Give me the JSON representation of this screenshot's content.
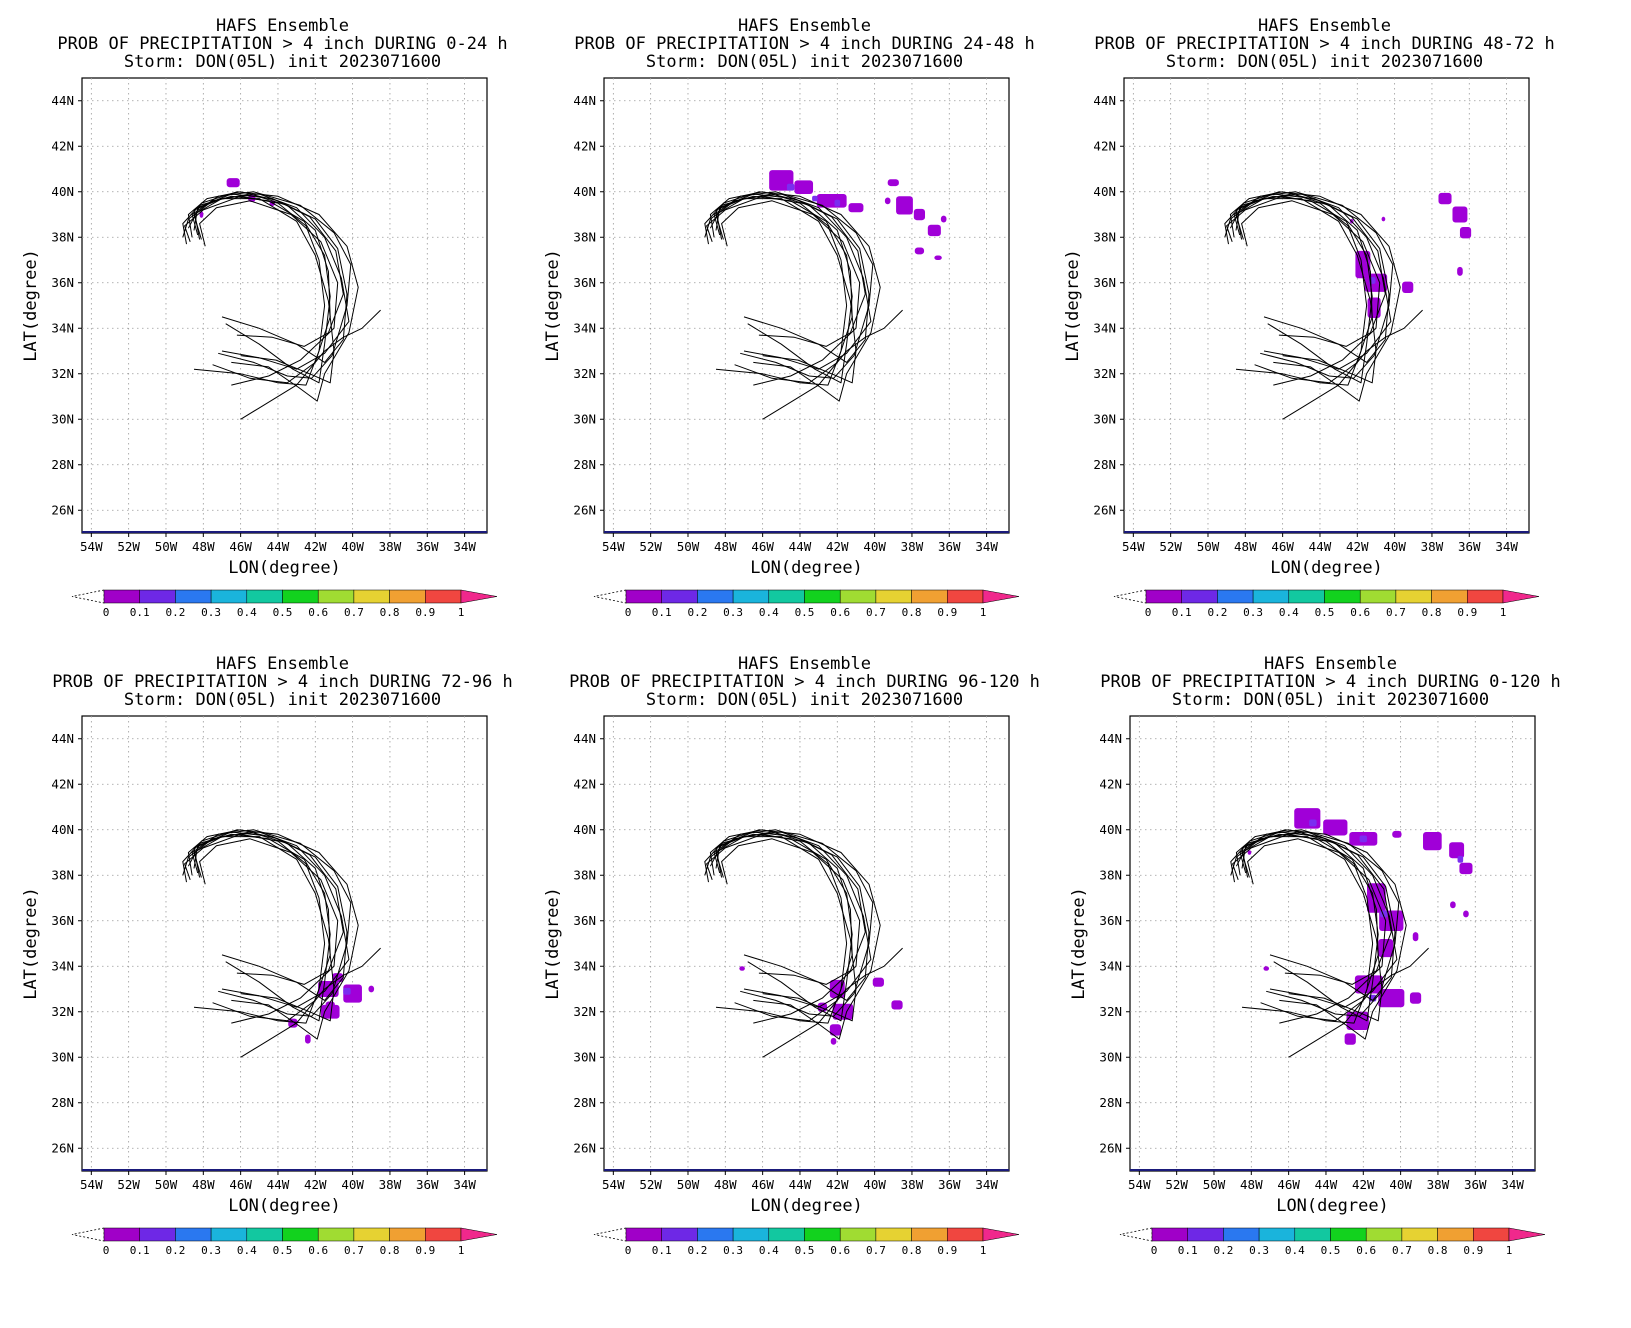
{
  "colors": {
    "ticks": [
      "0",
      "0.1",
      "0.2",
      "0.3",
      "0.4",
      "0.5",
      "0.6",
      "0.7",
      "0.8",
      "0.9",
      "1"
    ],
    "scale": [
      "#a000c8",
      "#6e28e6",
      "#2a78f0",
      "#1ab4dc",
      "#12c8a0",
      "#12d21e",
      "#a0dc32",
      "#e6d232",
      "#f0a032",
      "#f04640"
    ],
    "over": "#f0288c",
    "blob": "#a000d8",
    "blob_hi": "#7a2ef0"
  },
  "panels": [
    {
      "title1": "HAFS Ensemble",
      "title2": "PROB OF PRECIPITATION > 4 inch DURING  0-24 h",
      "title3": "Storm: DON(05L) init 2023071600",
      "xlabel": "LON(degree)",
      "ylabel": "LAT(degree)",
      "xticks": [
        "54W",
        "52W",
        "50W",
        "48W",
        "46W",
        "44W",
        "42W",
        "40W",
        "38W",
        "36W",
        "34W"
      ],
      "yticks": [
        "26N",
        "28N",
        "30N",
        "32N",
        "34N",
        "36N",
        "38N",
        "40N",
        "42N",
        "44N"
      ]
    },
    {
      "title1": "HAFS Ensemble",
      "title2": "PROB OF PRECIPITATION > 4 inch DURING 24-48 h",
      "title3": "Storm: DON(05L) init 2023071600",
      "xlabel": "LON(degree)",
      "ylabel": "LAT(degree)",
      "xticks": [
        "54W",
        "52W",
        "50W",
        "48W",
        "46W",
        "44W",
        "42W",
        "40W",
        "38W",
        "36W",
        "34W"
      ],
      "yticks": [
        "26N",
        "28N",
        "30N",
        "32N",
        "34N",
        "36N",
        "38N",
        "40N",
        "42N",
        "44N"
      ]
    },
    {
      "title1": "HAFS Ensemble",
      "title2": "PROB OF PRECIPITATION > 4 inch DURING 48-72 h",
      "title3": "Storm: DON(05L) init 2023071600",
      "xlabel": "LON(degree)",
      "ylabel": "LAT(degree)",
      "xticks": [
        "54W",
        "52W",
        "50W",
        "48W",
        "46W",
        "44W",
        "42W",
        "40W",
        "38W",
        "36W",
        "34W"
      ],
      "yticks": [
        "26N",
        "28N",
        "30N",
        "32N",
        "34N",
        "36N",
        "38N",
        "40N",
        "42N",
        "44N"
      ]
    },
    {
      "title1": "HAFS Ensemble",
      "title2": "PROB OF PRECIPITATION > 4 inch DURING 72-96 h",
      "title3": "Storm: DON(05L) init 2023071600",
      "xlabel": "LON(degree)",
      "ylabel": "LAT(degree)",
      "xticks": [
        "54W",
        "52W",
        "50W",
        "48W",
        "46W",
        "44W",
        "42W",
        "40W",
        "38W",
        "36W",
        "34W"
      ],
      "yticks": [
        "26N",
        "28N",
        "30N",
        "32N",
        "34N",
        "36N",
        "38N",
        "40N",
        "42N",
        "44N"
      ]
    },
    {
      "title1": "HAFS Ensemble",
      "title2": "PROB OF PRECIPITATION > 4 inch DURING 96-120 h",
      "title3": "Storm: DON(05L) init 2023071600",
      "xlabel": "LON(degree)",
      "ylabel": "LAT(degree)",
      "xticks": [
        "54W",
        "52W",
        "50W",
        "48W",
        "46W",
        "44W",
        "42W",
        "40W",
        "38W",
        "36W",
        "34W"
      ],
      "yticks": [
        "26N",
        "28N",
        "30N",
        "32N",
        "34N",
        "36N",
        "38N",
        "40N",
        "42N",
        "44N"
      ]
    },
    {
      "title1": "HAFS Ensemble",
      "title2": "PROB OF PRECIPITATION > 4 inch DURING 0-120 h",
      "title3": "Storm: DON(05L) init 2023071600",
      "xlabel": "LON(degree)",
      "ylabel": "LAT(degree)",
      "xticks": [
        "54W",
        "52W",
        "50W",
        "48W",
        "46W",
        "44W",
        "42W",
        "40W",
        "38W",
        "36W",
        "34W"
      ],
      "yticks": [
        "26N",
        "28N",
        "30N",
        "32N",
        "34N",
        "36N",
        "38N",
        "40N",
        "42N",
        "44N"
      ]
    }
  ],
  "chart_data": {
    "type": "heatmap",
    "map": {
      "lon_range": [
        -54.5,
        -32.8
      ],
      "lat_range": [
        25,
        45
      ],
      "grid": true
    },
    "colorbar": {
      "min": 0,
      "max": 1,
      "step": 0.1,
      "extend": "both"
    },
    "track_lines": [
      [
        [
          -46,
          30
        ],
        [
          -45,
          30.5
        ],
        [
          -43,
          31.5
        ],
        [
          -41.5,
          33
        ],
        [
          -40.5,
          33.6
        ],
        [
          -39.5,
          34
        ],
        [
          -38.5,
          34.8
        ]
      ],
      [
        [
          -48.5,
          32.2
        ],
        [
          -46,
          32
        ],
        [
          -44,
          31.6
        ],
        [
          -42.5,
          31.5
        ],
        [
          -41.8,
          33
        ],
        [
          -41.5,
          35
        ],
        [
          -41.8,
          37
        ],
        [
          -42.5,
          38.5
        ],
        [
          -44,
          39.5
        ],
        [
          -46,
          39.8
        ],
        [
          -48,
          39.2
        ],
        [
          -49,
          38.5
        ],
        [
          -48.7,
          37.8
        ]
      ],
      [
        [
          -47,
          34.5
        ],
        [
          -45,
          34
        ],
        [
          -43,
          33.3
        ],
        [
          -41.5,
          32.5
        ],
        [
          -40.5,
          33.5
        ],
        [
          -40.3,
          35.5
        ],
        [
          -40.8,
          37.5
        ],
        [
          -42,
          38.8
        ],
        [
          -44,
          39.6
        ],
        [
          -46,
          40
        ],
        [
          -47.8,
          39.7
        ],
        [
          -48.8,
          39
        ],
        [
          -48.6,
          38
        ]
      ],
      [
        [
          -47.5,
          32.4
        ],
        [
          -45.5,
          31.8
        ],
        [
          -43.5,
          31.6
        ],
        [
          -42,
          32.5
        ],
        [
          -41.2,
          34.5
        ],
        [
          -41.3,
          36.5
        ],
        [
          -42,
          38.3
        ],
        [
          -43.5,
          39.4
        ],
        [
          -45.5,
          39.9
        ],
        [
          -47.5,
          39.6
        ],
        [
          -48.8,
          38.8
        ],
        [
          -49.1,
          38
        ]
      ],
      [
        [
          -47,
          33
        ],
        [
          -45,
          32.7
        ],
        [
          -43,
          32.2
        ],
        [
          -41.5,
          32.9
        ],
        [
          -40.2,
          34.3
        ],
        [
          -40.6,
          36.2
        ],
        [
          -41.5,
          38
        ],
        [
          -43,
          39.3
        ],
        [
          -45,
          39.9
        ],
        [
          -47,
          39.7
        ],
        [
          -48.5,
          39.2
        ],
        [
          -48.2,
          37.9
        ]
      ],
      [
        [
          -46.5,
          31.5
        ],
        [
          -44.5,
          31.9
        ],
        [
          -42.8,
          32.6
        ],
        [
          -41,
          34
        ],
        [
          -40.8,
          36
        ],
        [
          -41.7,
          37.8
        ],
        [
          -43.3,
          39
        ],
        [
          -45.5,
          39.6
        ],
        [
          -47.3,
          39.3
        ],
        [
          -48.2,
          38.6
        ],
        [
          -47.9,
          37.6
        ]
      ],
      [
        [
          -46.8,
          34.2
        ],
        [
          -45,
          33.3
        ],
        [
          -43.2,
          32.2
        ],
        [
          -41.8,
          31.6
        ],
        [
          -41.5,
          33.3
        ],
        [
          -41.2,
          35.4
        ],
        [
          -41.5,
          37.2
        ],
        [
          -42.6,
          38.7
        ],
        [
          -44.5,
          39.6
        ],
        [
          -46.5,
          39.8
        ],
        [
          -48.2,
          39.4
        ],
        [
          -49.1,
          38.6
        ],
        [
          -48.9,
          37.7
        ]
      ],
      [
        [
          -47.2,
          32.9
        ],
        [
          -45.3,
          32.5
        ],
        [
          -43.5,
          31.9
        ],
        [
          -42.2,
          31.8
        ],
        [
          -41.1,
          32.8
        ],
        [
          -40.3,
          35
        ],
        [
          -40.1,
          36.8
        ],
        [
          -41,
          38.2
        ],
        [
          -42.8,
          39.4
        ],
        [
          -45.3,
          40
        ],
        [
          -47.2,
          39.8
        ],
        [
          -48.6,
          39
        ],
        [
          -48.3,
          38.1
        ]
      ],
      [
        [
          -46.2,
          33.7
        ],
        [
          -44.3,
          33.6
        ],
        [
          -42.6,
          33.2
        ],
        [
          -41.3,
          33.8
        ],
        [
          -40.5,
          35.5
        ],
        [
          -40.9,
          37.4
        ],
        [
          -42.3,
          38.9
        ],
        [
          -44.3,
          39.7
        ],
        [
          -46.5,
          39.9
        ],
        [
          -48.3,
          39.3
        ],
        [
          -48.5,
          38.3
        ]
      ],
      [
        [
          -46.5,
          32.5
        ],
        [
          -44.5,
          32.3
        ],
        [
          -42.9,
          31.4
        ],
        [
          -41.9,
          30.8
        ],
        [
          -41.5,
          32
        ],
        [
          -40.2,
          33.8
        ],
        [
          -39.7,
          35.8
        ],
        [
          -40.3,
          37.6
        ],
        [
          -41.8,
          39
        ],
        [
          -44,
          39.8
        ],
        [
          -46.2,
          40
        ],
        [
          -48.1,
          39.5
        ],
        [
          -48.8,
          38.4
        ]
      ],
      [
        [
          -46,
          32.8
        ],
        [
          -44.1,
          32.6
        ],
        [
          -42.3,
          32
        ],
        [
          -41.2,
          31.6
        ],
        [
          -41,
          33
        ],
        [
          -41.3,
          35.2
        ],
        [
          -42,
          37.2
        ],
        [
          -43,
          38.7
        ],
        [
          -45,
          39.7
        ],
        [
          -47,
          39.7
        ],
        [
          -48.5,
          39
        ],
        [
          -48.1,
          37.9
        ]
      ]
    ],
    "panels": [
      {
        "period": "0-24 h",
        "blobs": [
          [
            -46.4,
            40.4,
            0.7,
            0.4
          ],
          [
            -45.4,
            39.7,
            0.4,
            0.3
          ],
          [
            -48.1,
            39.0,
            0.2,
            0.3
          ],
          [
            -44.3,
            39.5,
            0.3,
            0.25
          ]
        ],
        "blobs_hi": []
      },
      {
        "period": "24-48 h",
        "blobs": [
          [
            -45,
            40.5,
            1.3,
            0.9
          ],
          [
            -43.8,
            40.2,
            1,
            0.6
          ],
          [
            -42.3,
            39.6,
            1.6,
            0.6
          ],
          [
            -41,
            39.3,
            0.8,
            0.4
          ],
          [
            -39,
            40.4,
            0.6,
            0.3
          ],
          [
            -38.4,
            39.4,
            0.9,
            0.8
          ],
          [
            -37.6,
            39,
            0.6,
            0.5
          ],
          [
            -36.8,
            38.3,
            0.7,
            0.5
          ],
          [
            -37.6,
            37.4,
            0.5,
            0.3
          ],
          [
            -36.6,
            37.1,
            0.4,
            0.2
          ],
          [
            -39.3,
            39.6,
            0.3,
            0.3
          ],
          [
            -36.3,
            38.8,
            0.3,
            0.3
          ]
        ],
        "blobs_hi": [
          [
            -44.5,
            40.2,
            0.4,
            0.3
          ],
          [
            -43.2,
            39.7,
            0.3,
            0.25
          ],
          [
            -42,
            39.5,
            0.3,
            0.3
          ]
        ]
      },
      {
        "period": "48-72 h",
        "blobs": [
          [
            -41.7,
            36.8,
            0.8,
            1.2
          ],
          [
            -41,
            36,
            1.2,
            0.8
          ],
          [
            -41.1,
            34.9,
            0.7,
            0.9
          ],
          [
            -39.3,
            35.8,
            0.6,
            0.5
          ],
          [
            -37.3,
            39.7,
            0.7,
            0.5
          ],
          [
            -36.5,
            39.0,
            0.8,
            0.7
          ],
          [
            -36.2,
            38.2,
            0.6,
            0.5
          ],
          [
            -36.5,
            36.5,
            0.3,
            0.4
          ],
          [
            -42.3,
            38.7,
            0.2,
            0.2
          ],
          [
            -40.6,
            38.8,
            0.2,
            0.2
          ]
        ],
        "blobs_hi": [
          [
            -41.2,
            36.1,
            0.35,
            0.3
          ]
        ]
      },
      {
        "period": "72-96 h",
        "blobs": [
          [
            -41.3,
            33,
            1.1,
            0.7
          ],
          [
            -40,
            32.8,
            1,
            0.8
          ],
          [
            -41.2,
            32,
            1,
            0.6
          ],
          [
            -43.2,
            31.5,
            0.5,
            0.4
          ],
          [
            -42.4,
            30.8,
            0.3,
            0.4
          ],
          [
            -41.2,
            32.3,
            0.5,
            0.3
          ],
          [
            -39,
            33,
            0.3,
            0.3
          ],
          [
            -40.8,
            33.5,
            0.6,
            0.4
          ]
        ],
        "blobs_hi": [
          [
            -40.3,
            32.9,
            0.4,
            0.3
          ]
        ]
      },
      {
        "period": "96-120 h",
        "blobs": [
          [
            -42,
            33,
            0.8,
            0.8
          ],
          [
            -41.7,
            32,
            1.1,
            0.7
          ],
          [
            -42.1,
            31.2,
            0.6,
            0.5
          ],
          [
            -42.2,
            30.7,
            0.3,
            0.3
          ],
          [
            -39.8,
            33.3,
            0.6,
            0.4
          ],
          [
            -38.8,
            32.3,
            0.6,
            0.4
          ],
          [
            -47.1,
            33.9,
            0.3,
            0.2
          ],
          [
            -42.8,
            32.2,
            0.5,
            0.4
          ]
        ],
        "blobs_hi": []
      },
      {
        "period": "0-120 h",
        "blobs": [
          [
            -45,
            40.5,
            1.4,
            0.9
          ],
          [
            -43.5,
            40.1,
            1.3,
            0.7
          ],
          [
            -42,
            39.6,
            1.5,
            0.6
          ],
          [
            -38.3,
            39.5,
            1,
            0.8
          ],
          [
            -37,
            39.1,
            0.8,
            0.7
          ],
          [
            -36.5,
            38.3,
            0.7,
            0.5
          ],
          [
            -40.2,
            39.8,
            0.5,
            0.3
          ],
          [
            -48.1,
            39.0,
            0.2,
            0.2
          ],
          [
            -41.3,
            37,
            1,
            1.3
          ],
          [
            -40.5,
            36,
            1.3,
            0.9
          ],
          [
            -40.8,
            34.8,
            0.8,
            0.8
          ],
          [
            -41.7,
            33.2,
            1.5,
            0.8
          ],
          [
            -40.5,
            32.6,
            1.4,
            0.8
          ],
          [
            -42.3,
            31.6,
            1.2,
            0.8
          ],
          [
            -42.7,
            30.8,
            0.6,
            0.5
          ],
          [
            -39.2,
            32.6,
            0.6,
            0.5
          ],
          [
            -47.2,
            33.9,
            0.3,
            0.2
          ],
          [
            -37.2,
            36.7,
            0.3,
            0.3
          ],
          [
            -36.5,
            36.3,
            0.3,
            0.3
          ],
          [
            -39.2,
            35.3,
            0.3,
            0.4
          ]
        ],
        "blobs_hi": [
          [
            -44.7,
            40.3,
            0.4,
            0.3
          ],
          [
            -42,
            39.6,
            0.4,
            0.3
          ],
          [
            -40.9,
            36.3,
            0.4,
            0.3
          ],
          [
            -41.5,
            32.6,
            0.4,
            0.3
          ],
          [
            -36.8,
            38.7,
            0.3,
            0.3
          ]
        ]
      }
    ]
  }
}
